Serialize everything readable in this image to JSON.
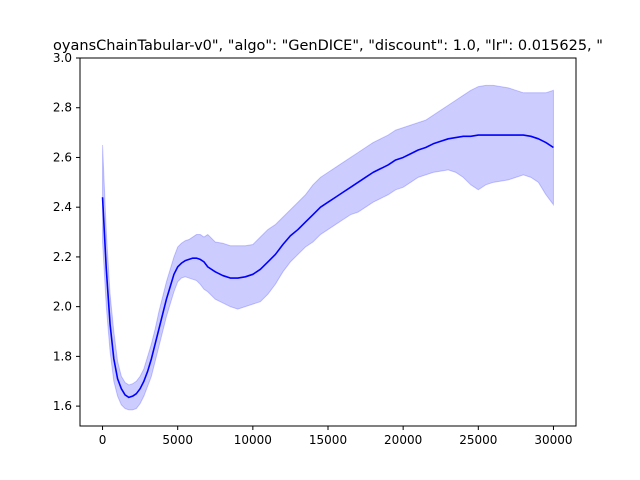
{
  "chart_data": {
    "type": "line",
    "title": "oyansChainTabular-v0\", \"algo\": \"GenDICE\", \"discount\": 1.0, \"lr\": 0.015625, \"",
    "xlabel": "",
    "ylabel": "",
    "xlim": [
      -1500,
      31500
    ],
    "ylim": [
      1.52,
      3.0
    ],
    "x_ticks": [
      0,
      5000,
      10000,
      15000,
      20000,
      25000,
      30000
    ],
    "y_ticks": [
      1.6,
      1.8,
      2.0,
      2.2,
      2.4,
      2.6,
      2.8,
      3.0
    ],
    "grid": false,
    "series": [
      {
        "line_color": "#0000ff",
        "band_color": "#0000ff",
        "x": [
          0,
          250,
          500,
          750,
          1000,
          1250,
          1500,
          1750,
          2000,
          2250,
          2500,
          2750,
          3000,
          3250,
          3500,
          3750,
          4000,
          4250,
          4500,
          4750,
          5000,
          5250,
          5500,
          5750,
          6000,
          6250,
          6500,
          6750,
          7000,
          7500,
          8000,
          8500,
          9000,
          9500,
          10000,
          10500,
          11000,
          11500,
          12000,
          12500,
          13000,
          13500,
          14000,
          14500,
          15000,
          15500,
          16000,
          16500,
          17000,
          17500,
          18000,
          18500,
          19000,
          19500,
          20000,
          20500,
          21000,
          21500,
          22000,
          22500,
          23000,
          23500,
          24000,
          24500,
          25000,
          25500,
          26000,
          26500,
          27000,
          27500,
          28000,
          28500,
          29000,
          29500,
          30000
        ],
        "mean": [
          2.44,
          2.15,
          1.93,
          1.79,
          1.71,
          1.67,
          1.645,
          1.635,
          1.64,
          1.65,
          1.67,
          1.7,
          1.74,
          1.79,
          1.85,
          1.91,
          1.97,
          2.03,
          2.08,
          2.13,
          2.16,
          2.175,
          2.185,
          2.19,
          2.195,
          2.195,
          2.19,
          2.18,
          2.16,
          2.14,
          2.125,
          2.115,
          2.115,
          2.12,
          2.13,
          2.15,
          2.18,
          2.21,
          2.25,
          2.285,
          2.31,
          2.34,
          2.37,
          2.4,
          2.42,
          2.44,
          2.46,
          2.48,
          2.5,
          2.52,
          2.54,
          2.555,
          2.57,
          2.59,
          2.6,
          2.615,
          2.63,
          2.64,
          2.655,
          2.665,
          2.675,
          2.68,
          2.685,
          2.685,
          2.69,
          2.69,
          2.69,
          2.69,
          2.69,
          2.69,
          2.69,
          2.685,
          2.675,
          2.66,
          2.64
        ],
        "upper": [
          2.65,
          2.3,
          2.05,
          1.9,
          1.78,
          1.72,
          1.695,
          1.685,
          1.69,
          1.7,
          1.72,
          1.75,
          1.8,
          1.85,
          1.91,
          1.98,
          2.04,
          2.1,
          2.15,
          2.2,
          2.24,
          2.255,
          2.265,
          2.27,
          2.28,
          2.29,
          2.29,
          2.28,
          2.29,
          2.26,
          2.255,
          2.245,
          2.245,
          2.245,
          2.25,
          2.28,
          2.31,
          2.33,
          2.36,
          2.39,
          2.42,
          2.45,
          2.49,
          2.52,
          2.54,
          2.56,
          2.58,
          2.6,
          2.62,
          2.64,
          2.66,
          2.675,
          2.69,
          2.71,
          2.72,
          2.73,
          2.74,
          2.75,
          2.77,
          2.79,
          2.81,
          2.83,
          2.85,
          2.87,
          2.885,
          2.89,
          2.89,
          2.885,
          2.88,
          2.87,
          2.86,
          2.86,
          2.86,
          2.86,
          2.87
        ],
        "lower": [
          2.26,
          2.0,
          1.82,
          1.7,
          1.64,
          1.605,
          1.59,
          1.585,
          1.585,
          1.59,
          1.61,
          1.64,
          1.68,
          1.72,
          1.78,
          1.84,
          1.9,
          1.96,
          2.01,
          2.06,
          2.1,
          2.115,
          2.12,
          2.115,
          2.11,
          2.105,
          2.09,
          2.07,
          2.06,
          2.03,
          2.015,
          2.0,
          1.99,
          2.0,
          2.01,
          2.02,
          2.05,
          2.09,
          2.14,
          2.18,
          2.21,
          2.24,
          2.26,
          2.29,
          2.31,
          2.33,
          2.35,
          2.37,
          2.38,
          2.4,
          2.42,
          2.435,
          2.45,
          2.47,
          2.48,
          2.5,
          2.52,
          2.53,
          2.54,
          2.545,
          2.55,
          2.54,
          2.52,
          2.49,
          2.47,
          2.49,
          2.5,
          2.505,
          2.51,
          2.52,
          2.53,
          2.52,
          2.5,
          2.45,
          2.41
        ]
      }
    ]
  }
}
